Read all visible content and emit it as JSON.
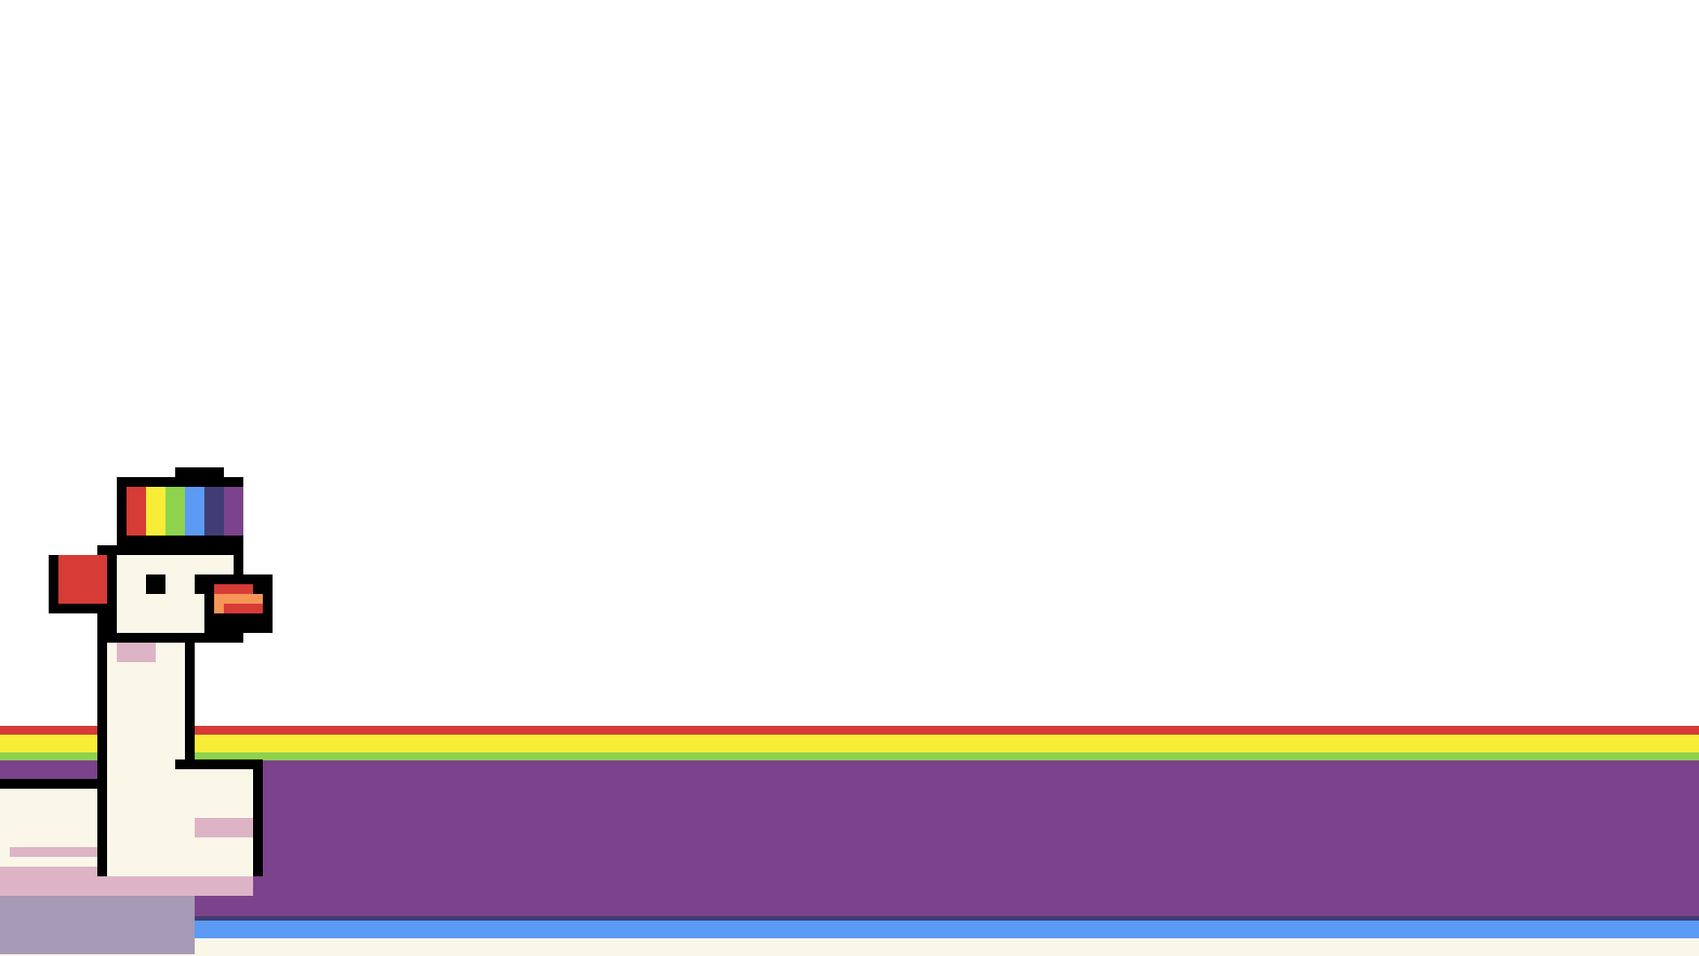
{
  "scene": {
    "name": "rainbow-goose-game-scene",
    "background_color": "#ffffff"
  },
  "palette": {
    "rainbow_red": "#d63b36",
    "rainbow_yellow": "#f7ed36",
    "rainbow_green": "#8ed24e",
    "rainbow_blue": "#5b9bf5",
    "rainbow_indigo": "#3f3d73",
    "rainbow_purple": "#7b438b",
    "outline": "#000000",
    "goose_white": "#faf6e8",
    "goose_pink": "#dcb4c6",
    "goose_shadow": "#a69ab6",
    "beak_orange": "#f59556",
    "beak_red": "#d63b36"
  },
  "icons": {
    "character": "goose-character-icon",
    "hat": "rainbow-cap-icon",
    "floor": "rainbow-stripe-floor"
  }
}
